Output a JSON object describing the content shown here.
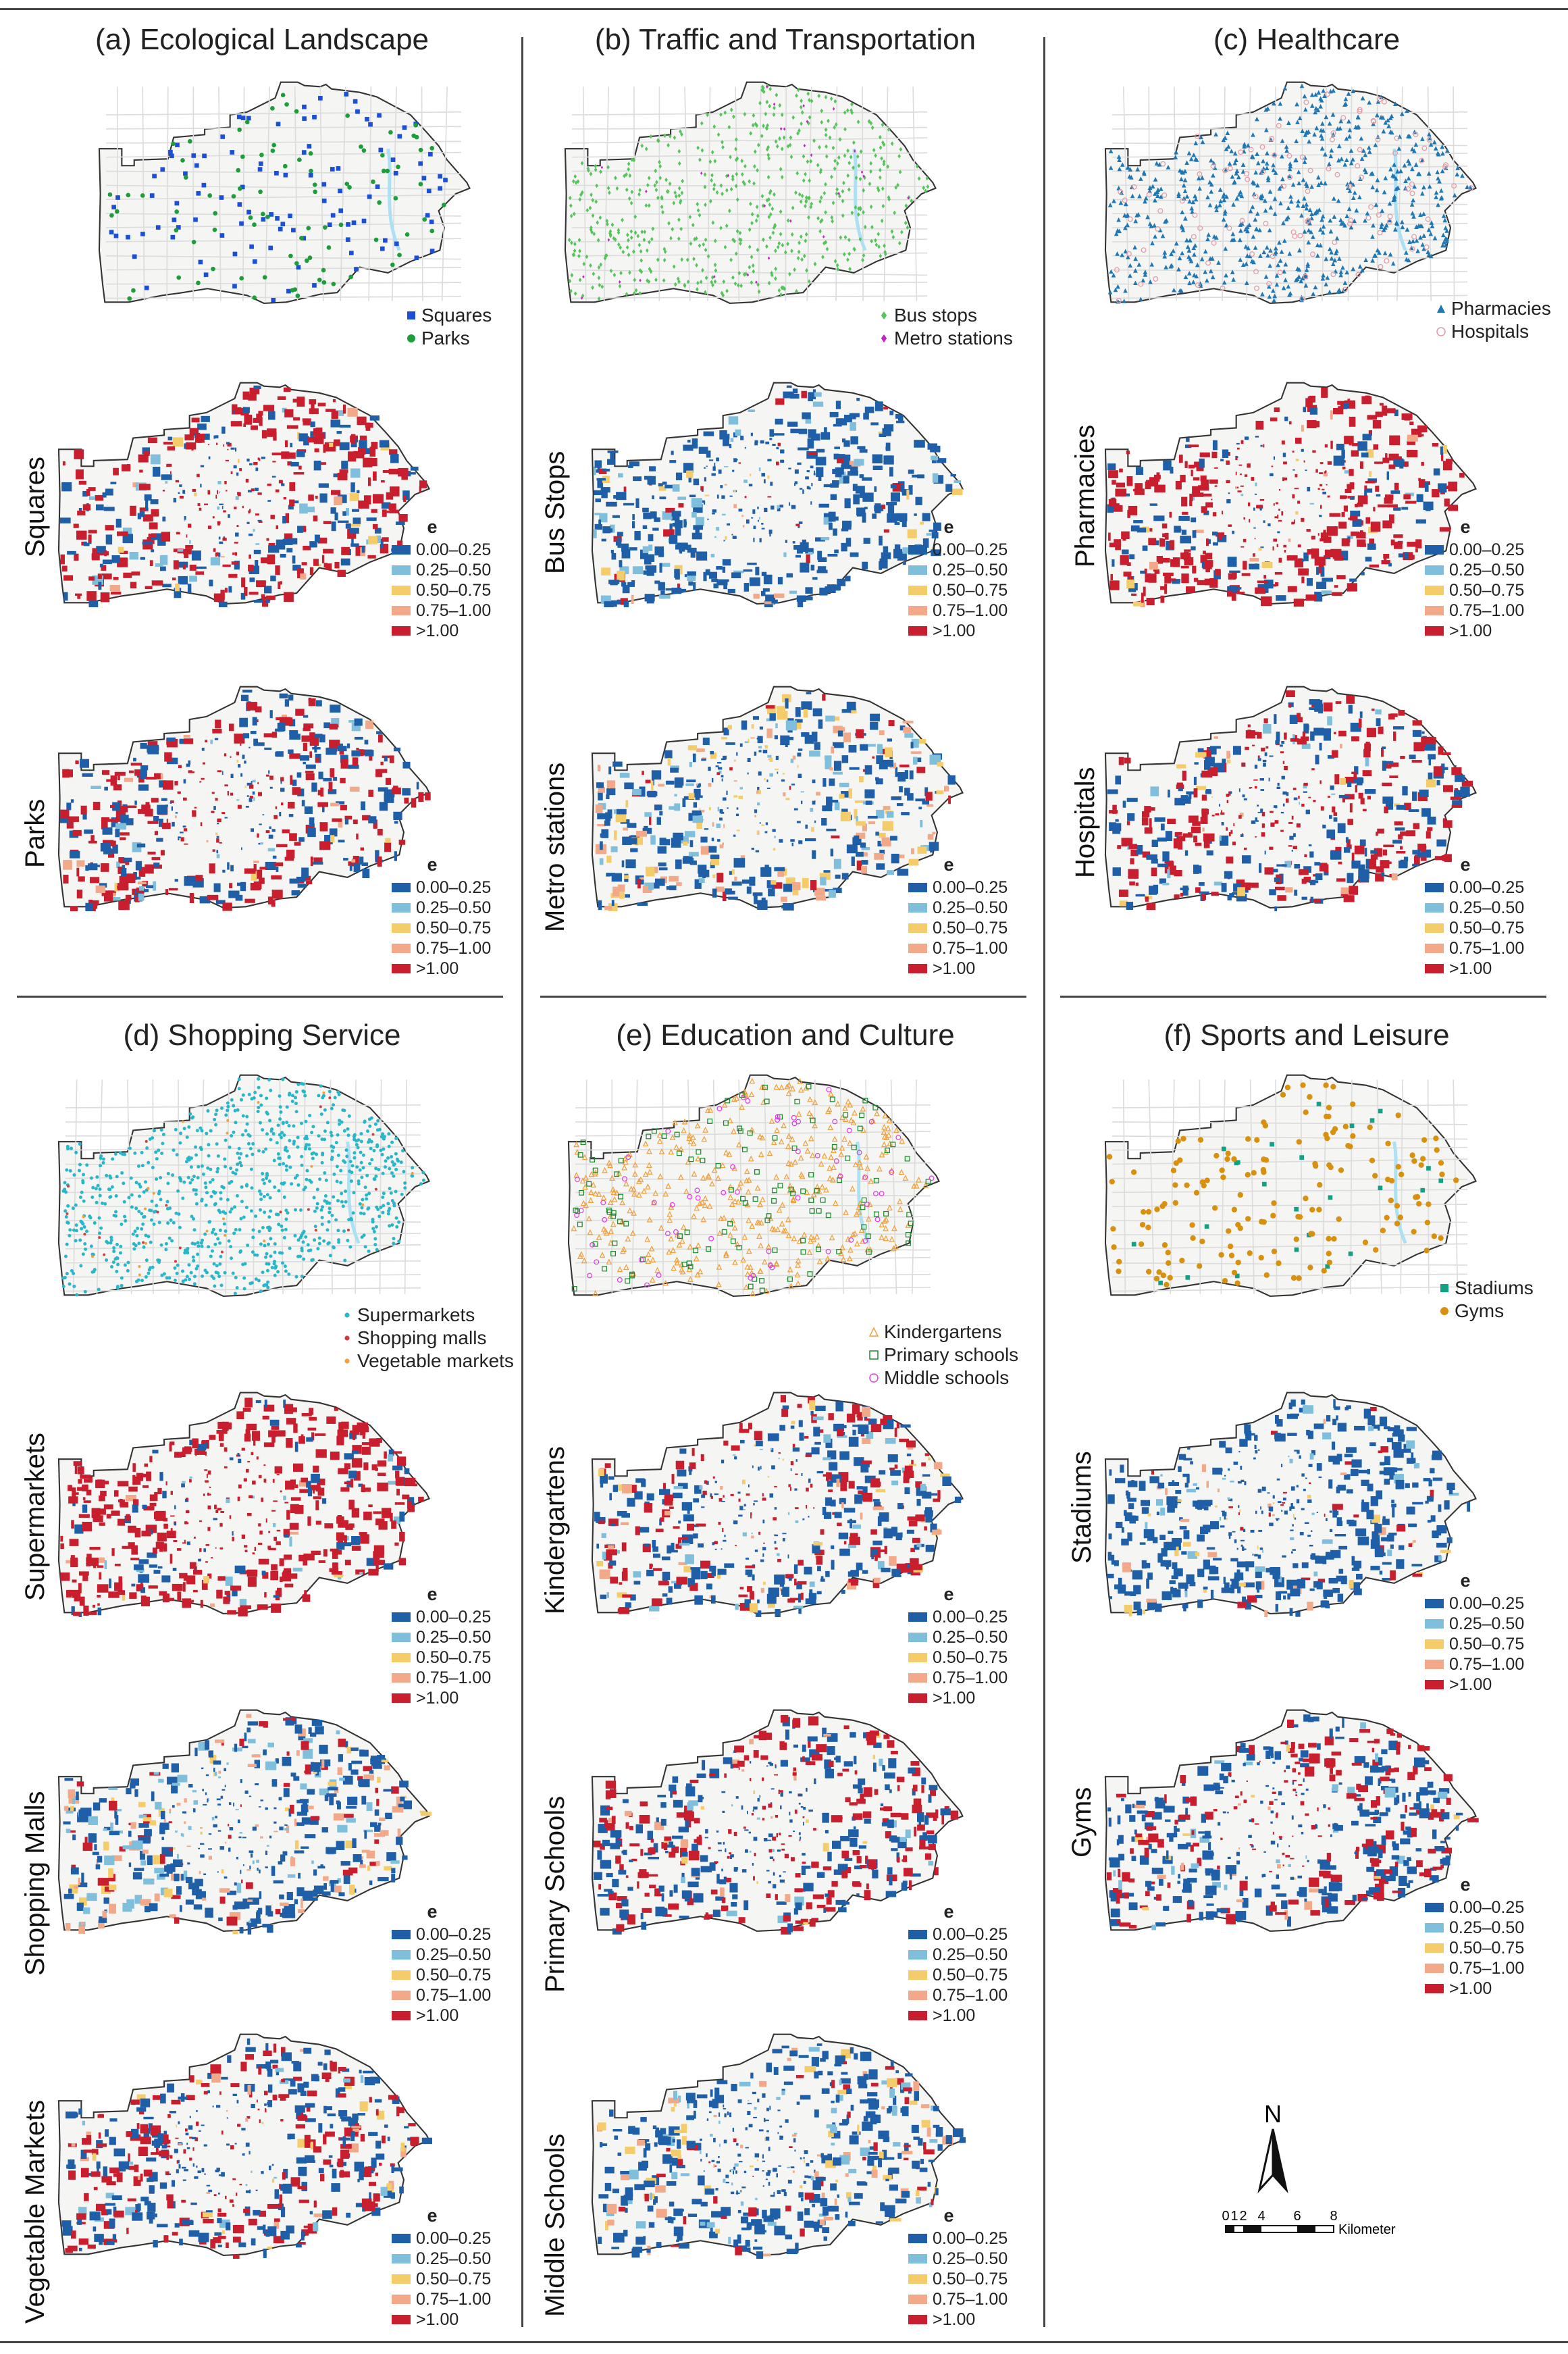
{
  "colors": {
    "c1": "#1f5fa8",
    "c2": "#7fbfdc",
    "c3": "#f5cc6a",
    "c4": "#f2a989",
    "c5": "#c81e2d",
    "map_fill": "#f5f6f4",
    "road": "#dcdcdc",
    "water": "#aee0f3"
  },
  "legend": {
    "title": "e",
    "classes": [
      "0.00–0.25",
      "0.25–0.50",
      "0.50–0.75",
      "0.75–1.00",
      ">1.00"
    ]
  },
  "panels": {
    "a": {
      "title": "(a) Ecological Landscape",
      "points_legend": [
        {
          "label": "Squares",
          "marker": "square",
          "color": "#1a4fd6"
        },
        {
          "label": "Parks",
          "marker": "circle",
          "color": "#1e9e3a"
        }
      ],
      "rows": [
        "Squares",
        "Parks"
      ]
    },
    "b": {
      "title": "(b) Traffic and Transportation",
      "points_legend": [
        {
          "label": "Bus stops",
          "marker": "diamond",
          "color": "#55c45a"
        },
        {
          "label": "Metro stations",
          "marker": "diamond",
          "color": "#c424c4"
        }
      ],
      "rows": [
        "Bus Stops",
        "Metro stations"
      ]
    },
    "c": {
      "title": "(c) Healthcare",
      "points_legend": [
        {
          "label": "Pharmacies",
          "marker": "triangle",
          "color": "#1f77b4"
        },
        {
          "label": "Hospitals",
          "marker": "ocircle",
          "color": "#e39aa3"
        }
      ],
      "rows": [
        "Pharmacies",
        "Hospitals"
      ]
    },
    "d": {
      "title": "(d) Shopping Service",
      "points_legend": [
        {
          "label": "Supermarkets",
          "marker": "star",
          "color": "#29b6c8"
        },
        {
          "label": "Shopping malls",
          "marker": "star",
          "color": "#d23c3c"
        },
        {
          "label": "Vegetable markets",
          "marker": "star",
          "color": "#f2a03a"
        }
      ],
      "rows": [
        "Supermarkets",
        "Shopping Malls",
        "Vegetable Markets"
      ]
    },
    "e": {
      "title": "(e) Education and Culture",
      "points_legend": [
        {
          "label": "Kindergartens",
          "marker": "otriangle",
          "color": "#f2a03a"
        },
        {
          "label": "Primary schools",
          "marker": "osquare",
          "color": "#1e8a2e"
        },
        {
          "label": "Middle schools",
          "marker": "ohex",
          "color": "#e040e0"
        }
      ],
      "rows": [
        "Kindergartens",
        "Primary Schools",
        "Middle Schools"
      ]
    },
    "f": {
      "title": "(f) Sports and Leisure",
      "points_legend": [
        {
          "label": "Stadiums",
          "marker": "square",
          "color": "#13a085"
        },
        {
          "label": "Gyms",
          "marker": "circle",
          "color": "#d8900f"
        }
      ],
      "rows": [
        "Stadiums",
        "Gyms"
      ]
    }
  },
  "north_label": "N",
  "scale": {
    "ticks": [
      "0",
      "1",
      "2",
      "4",
      "6",
      "8"
    ],
    "unit": "Kilometer"
  }
}
